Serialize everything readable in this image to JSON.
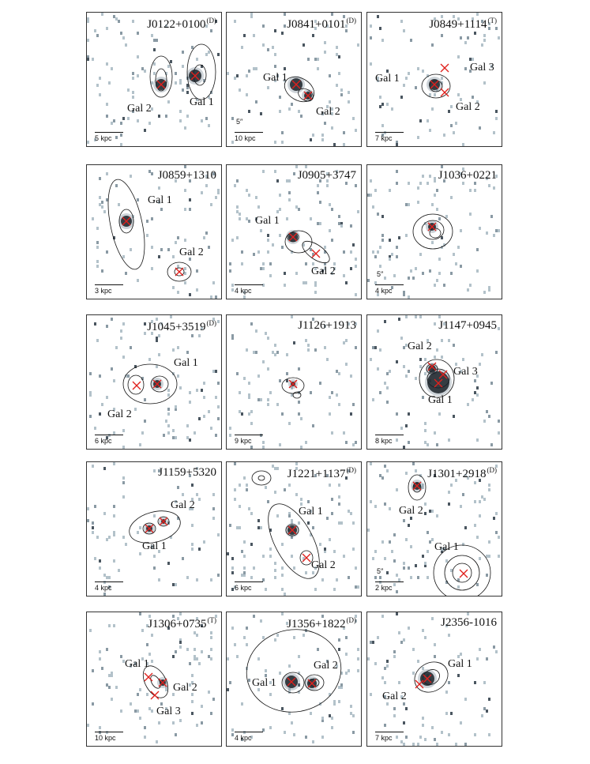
{
  "figure": {
    "panels": [
      {
        "id": "J0122",
        "title": "J0122+0100",
        "sup": "(D)",
        "scale": "5 kpc",
        "arcsec": "",
        "labels": [
          {
            "text": "Gal 2"
          },
          {
            "text": "Gal 1"
          }
        ]
      },
      {
        "id": "J0841",
        "title": "J0841+0101",
        "sup": "(D)",
        "scale": "10 kpc",
        "arcsec": "5″",
        "labels": [
          {
            "text": "Gal 1"
          },
          {
            "text": "Gal 2"
          }
        ]
      },
      {
        "id": "J0849",
        "title": "J0849+1114",
        "sup": "(T)",
        "scale": "7 kpc",
        "arcsec": "",
        "labels": [
          {
            "text": "Gal 1"
          },
          {
            "text": "Gal 3"
          },
          {
            "text": "Gal 2"
          }
        ]
      },
      {
        "id": "J0859",
        "title": "J0859+1310",
        "sup": "",
        "scale": "3 kpc",
        "arcsec": "",
        "labels": [
          {
            "text": "Gal 1"
          },
          {
            "text": "Gal 2"
          }
        ]
      },
      {
        "id": "J0905",
        "title": "J0905+3747",
        "sup": "",
        "scale": "4 kpc",
        "arcsec": "",
        "labels": [
          {
            "text": "Gal 1"
          },
          {
            "text": "Gal 2"
          }
        ]
      },
      {
        "id": "J1036",
        "title": "J1036+0221",
        "sup": "",
        "scale": "4 kpc",
        "arcsec": "5″",
        "labels": []
      },
      {
        "id": "J1045",
        "title": "J1045+3519",
        "sup": "(D)",
        "scale": "6 kpc",
        "arcsec": "",
        "labels": [
          {
            "text": "Gal 1"
          },
          {
            "text": "Gal 2"
          }
        ]
      },
      {
        "id": "J1126",
        "title": "J1126+1913",
        "sup": "",
        "scale": "9 kpc",
        "arcsec": "",
        "labels": []
      },
      {
        "id": "J1147",
        "title": "J1147+0945",
        "sup": "",
        "scale": "8 kpc",
        "arcsec": "",
        "labels": [
          {
            "text": "Gal 2"
          },
          {
            "text": "Gal 3"
          },
          {
            "text": "Gal 1"
          }
        ]
      },
      {
        "id": "J1159",
        "title": "J1159+5320",
        "sup": "",
        "scale": "4 kpc",
        "arcsec": "",
        "labels": [
          {
            "text": "Gal 2"
          },
          {
            "text": "Gal 1"
          }
        ]
      },
      {
        "id": "J1221",
        "title": "J1221+1137",
        "sup": "(D)",
        "scale": "6 kpc",
        "arcsec": "",
        "labels": [
          {
            "text": "Gal 1"
          },
          {
            "text": "Gal 2"
          }
        ]
      },
      {
        "id": "J1301",
        "title": "J1301+2918",
        "sup": "(D)",
        "scale": "2 kpc",
        "arcsec": "5″",
        "labels": [
          {
            "text": "Gal 2"
          },
          {
            "text": "Gal 1"
          }
        ]
      },
      {
        "id": "J1306",
        "title": "J1306+0735",
        "sup": "(T)",
        "scale": "10 kpc",
        "arcsec": "",
        "labels": [
          {
            "text": "Gal 1"
          },
          {
            "text": "Gal 2"
          },
          {
            "text": "Gal 3"
          }
        ]
      },
      {
        "id": "J1356",
        "title": "J1356+1822",
        "sup": "(D)",
        "scale": "4 kpc",
        "arcsec": "",
        "labels": [
          {
            "text": "Gal 2"
          },
          {
            "text": "Gal 1"
          }
        ]
      },
      {
        "id": "J2356",
        "title": "J2356-1016",
        "sup": "",
        "scale": "7 kpc",
        "arcsec": "",
        "labels": [
          {
            "text": "Gal 1"
          },
          {
            "text": "Gal 2"
          }
        ]
      }
    ]
  }
}
